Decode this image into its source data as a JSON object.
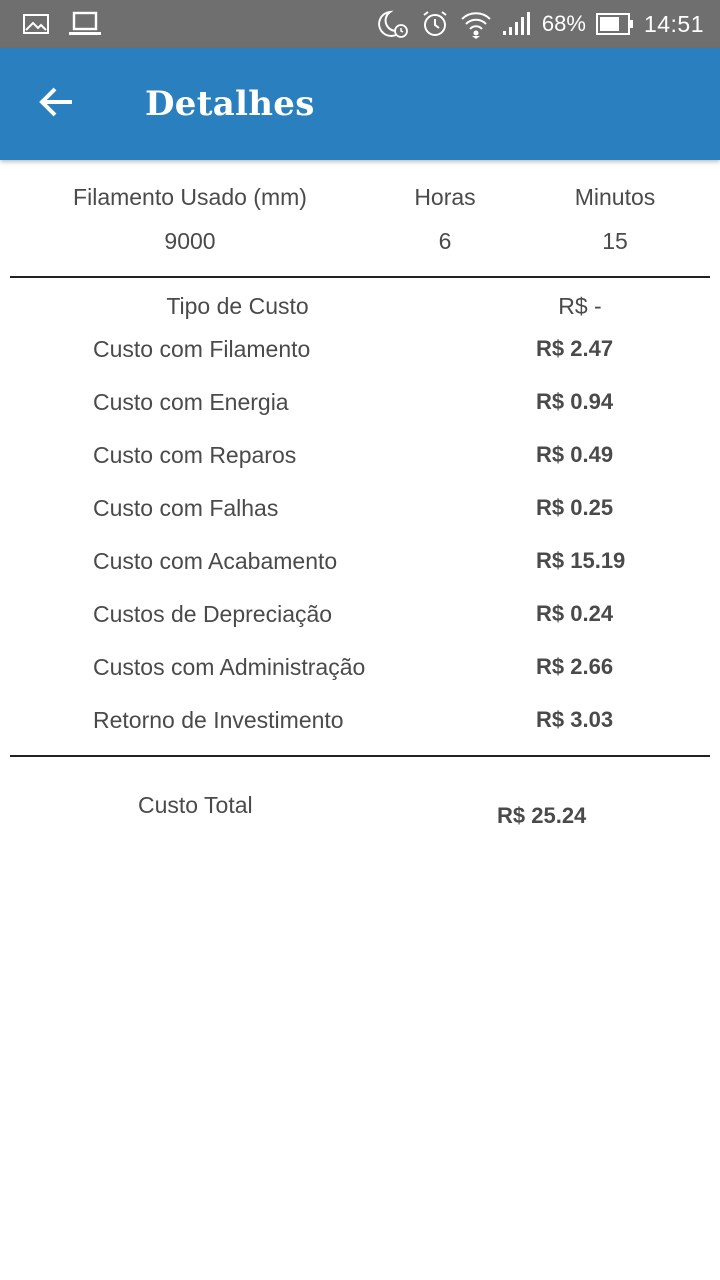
{
  "status_bar": {
    "battery": "68%",
    "time": "14:51",
    "icons": [
      "gallery-icon",
      "laptop-icon",
      "do-not-disturb-alarm-icon",
      "alarm-icon",
      "wifi-icon",
      "signal-icon",
      "battery-icon"
    ]
  },
  "app_bar": {
    "title": "Detalhes",
    "back_icon": "arrow-left-icon",
    "background_color": "#2a7fbe"
  },
  "summary": {
    "filament_label": "Filamento Usado (mm)",
    "filament_value": "9000",
    "hours_label": "Horas",
    "hours_value": "6",
    "minutes_label": "Minutos",
    "minutes_value": "15"
  },
  "costs": {
    "header_type": "Tipo de Custo",
    "header_value": "R$ -",
    "items": [
      {
        "label": "Custo com Filamento",
        "value": "R$ 2.47"
      },
      {
        "label": "Custo com Energia",
        "value": "R$ 0.94"
      },
      {
        "label": "Custo com Reparos",
        "value": "R$ 0.49"
      },
      {
        "label": "Custo com Falhas",
        "value": "R$ 0.25"
      },
      {
        "label": "Custo com Acabamento",
        "value": "R$ 15.19"
      },
      {
        "label": "Custos de Depreciação",
        "value": "R$ 0.24"
      },
      {
        "label": "Custos com Administração",
        "value": "R$ 2.66"
      },
      {
        "label": "Retorno de Investimento",
        "value": "R$ 3.03"
      }
    ]
  },
  "total": {
    "label": "Custo Total",
    "value": "R$ 25.24"
  }
}
